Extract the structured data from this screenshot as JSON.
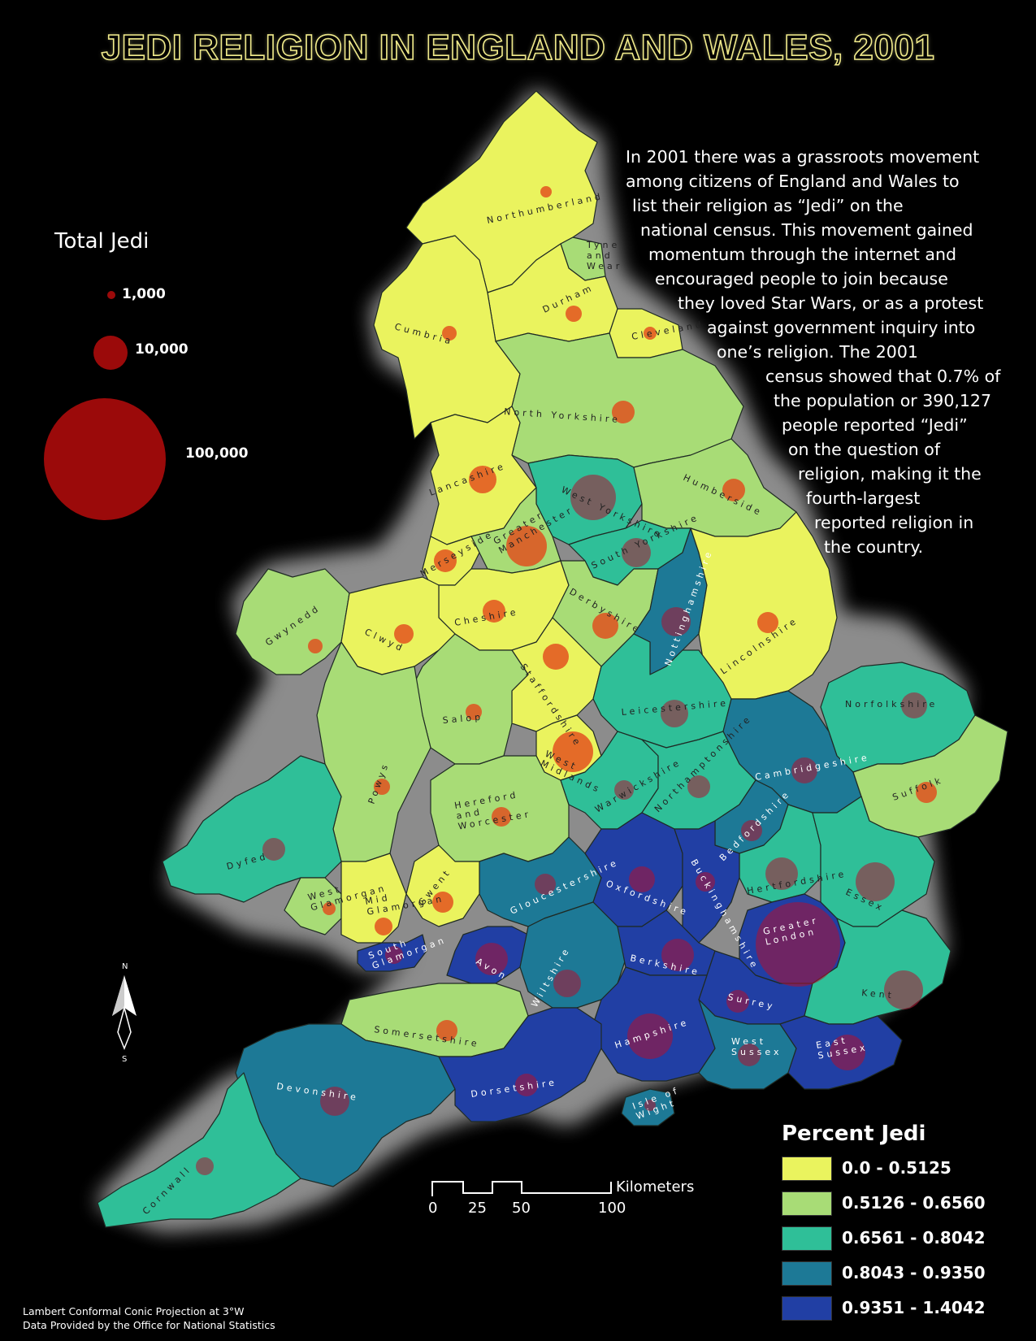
{
  "title": "JEDI RELIGION IN ENGLAND AND WALES, 2001",
  "description": [
    "In 2001 there was a grassroots movement",
    "among citizens of England and Wales to",
    "list their religion as “Jedi” on the",
    "national census.  This movement gained",
    "momentum through the internet and",
    "encouraged people to join because",
    "they loved Star Wars, or as a protest",
    "against government inquiry into",
    "one’s religion. The 2001",
    "census showed that 0.7% of",
    "the population or 390,127",
    "people reported “Jedi”",
    "on the question of",
    "religion, making it the",
    "fourth-largest",
    "reported religion in",
    "the country."
  ],
  "total_jedi_legend": {
    "title": "Total Jedi",
    "items": [
      {
        "label": "1,000",
        "value": 1000
      },
      {
        "label": "10,000",
        "value": 10000
      },
      {
        "label": "100,000",
        "value": 100000
      }
    ]
  },
  "percent_jedi_legend": {
    "title": "Percent Jedi",
    "classes": [
      {
        "label": "0.0 - 0.5125",
        "color": "#eaf35e"
      },
      {
        "label": "0.5126 - 0.6560",
        "color": "#a8dc76"
      },
      {
        "label": "0.6561 - 0.8042",
        "color": "#2fbf98"
      },
      {
        "label": "0.8043 - 0.9350",
        "color": "#1d7996"
      },
      {
        "label": "0.9351 - 1.4042",
        "color": "#213fa4"
      }
    ]
  },
  "scale_bar": {
    "labels": [
      "0",
      "25",
      "50",
      "100"
    ],
    "unit": "Kilometers"
  },
  "compass": {
    "north": "N",
    "south": "S"
  },
  "footer": [
    "Lambert Conformal Conic Projection at 3°W",
    "Data Provided by the Office for National Statistics"
  ],
  "regions": [
    {
      "name": "Northumberland",
      "class": 0
    },
    {
      "name": "Tyne and Wear",
      "class": 1
    },
    {
      "name": "Durham",
      "class": 0
    },
    {
      "name": "Cleveland",
      "class": 0
    },
    {
      "name": "Cumbria",
      "class": 0
    },
    {
      "name": "North Yorkshire",
      "class": 1
    },
    {
      "name": "Lancashire",
      "class": 0
    },
    {
      "name": "West Yorkshire",
      "class": 2
    },
    {
      "name": "Humberside",
      "class": 1
    },
    {
      "name": "Greater Manchester",
      "class": 1
    },
    {
      "name": "Merseyside",
      "class": 0
    },
    {
      "name": "South Yorkshire",
      "class": 2
    },
    {
      "name": "Cheshire",
      "class": 0
    },
    {
      "name": "Derbyshire",
      "class": 1
    },
    {
      "name": "Nottinghamshire",
      "class": 3
    },
    {
      "name": "Lincolnshire",
      "class": 0
    },
    {
      "name": "Gwynedd",
      "class": 1
    },
    {
      "name": "Clwyd",
      "class": 0
    },
    {
      "name": "Staffordshire",
      "class": 0
    },
    {
      "name": "Salop",
      "class": 1
    },
    {
      "name": "Leicestershire",
      "class": 2
    },
    {
      "name": "West Midlands",
      "class": 0
    },
    {
      "name": "Norfolkshire",
      "class": 2
    },
    {
      "name": "Cambridgeshire",
      "class": 3
    },
    {
      "name": "Suffolk",
      "class": 1
    },
    {
      "name": "Powys",
      "class": 1
    },
    {
      "name": "Hereford and Worcester",
      "class": 1
    },
    {
      "name": "Warwickshire",
      "class": 2
    },
    {
      "name": "Northamptonshire",
      "class": 2
    },
    {
      "name": "Dyfed",
      "class": 2
    },
    {
      "name": "Bedfordshire",
      "class": 3
    },
    {
      "name": "Hertfordshire",
      "class": 2
    },
    {
      "name": "Essex",
      "class": 2
    },
    {
      "name": "Gloucestershire",
      "class": 3
    },
    {
      "name": "Oxfordshire",
      "class": 4
    },
    {
      "name": "Buckinghamshire",
      "class": 4
    },
    {
      "name": "Gwent",
      "class": 0
    },
    {
      "name": "West Glamorgan",
      "class": 1
    },
    {
      "name": "Mid Glamorgan",
      "class": 0
    },
    {
      "name": "South Glamorgan",
      "class": 4
    },
    {
      "name": "Avon",
      "class": 4
    },
    {
      "name": "Wiltshire",
      "class": 3
    },
    {
      "name": "Berkshire",
      "class": 4
    },
    {
      "name": "Greater London",
      "class": 4
    },
    {
      "name": "Surrey",
      "class": 4
    },
    {
      "name": "Kent",
      "class": 2
    },
    {
      "name": "Somersetshire",
      "class": 1
    },
    {
      "name": "Hampshire",
      "class": 4
    },
    {
      "name": "West Sussex",
      "class": 3
    },
    {
      "name": "East Sussex",
      "class": 4
    },
    {
      "name": "Devonshire",
      "class": 3
    },
    {
      "name": "Dorsetshire",
      "class": 4
    },
    {
      "name": "Isle of Wight",
      "class": 3
    },
    {
      "name": "Cornwall",
      "class": 2
    }
  ]
}
